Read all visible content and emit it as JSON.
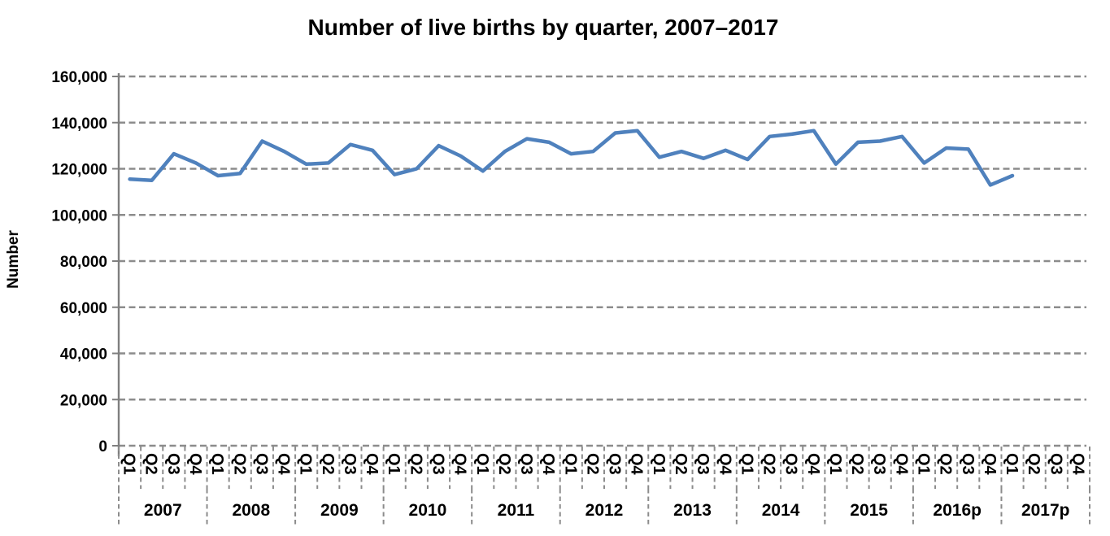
{
  "title": "Number of live births by quarter, 2007–2017",
  "y_axis_title": "Number",
  "colors": {
    "line": "#4F81BD",
    "grid": "#8C8C8C",
    "axis": "#7F7F7F",
    "text": "#000000",
    "background": "#FFFFFF"
  },
  "chart_data": {
    "type": "line",
    "title": "Number of live births by quarter, 2007–2017",
    "xlabel": "",
    "ylabel": "Number",
    "legend": "none",
    "grid": "horizontal-dashed",
    "ylim": [
      0,
      160000
    ],
    "y_ticks": [
      0,
      20000,
      40000,
      60000,
      80000,
      100000,
      120000,
      140000,
      160000
    ],
    "y_tick_labels": [
      "0",
      "20,000",
      "40,000",
      "60,000",
      "80,000",
      "100,000",
      "120,000",
      "140,000",
      "160,000"
    ],
    "years": [
      "2007",
      "2008",
      "2009",
      "2010",
      "2011",
      "2012",
      "2013",
      "2014",
      "2015",
      "2016p",
      "2017p"
    ],
    "quarter_labels": [
      "Q1",
      "Q2",
      "Q3",
      "Q4"
    ],
    "values": [
      115500,
      115000,
      126500,
      122500,
      117000,
      118000,
      132000,
      127500,
      122000,
      122500,
      130500,
      128000,
      117500,
      120000,
      130000,
      125500,
      119000,
      127500,
      133000,
      131500,
      126500,
      127500,
      135500,
      136500,
      125000,
      127500,
      124500,
      128000,
      124000,
      134000,
      135000,
      136500,
      122000,
      131500,
      132000,
      134000,
      122500,
      129000,
      128500,
      113000,
      117000,
      null,
      null,
      null
    ]
  }
}
